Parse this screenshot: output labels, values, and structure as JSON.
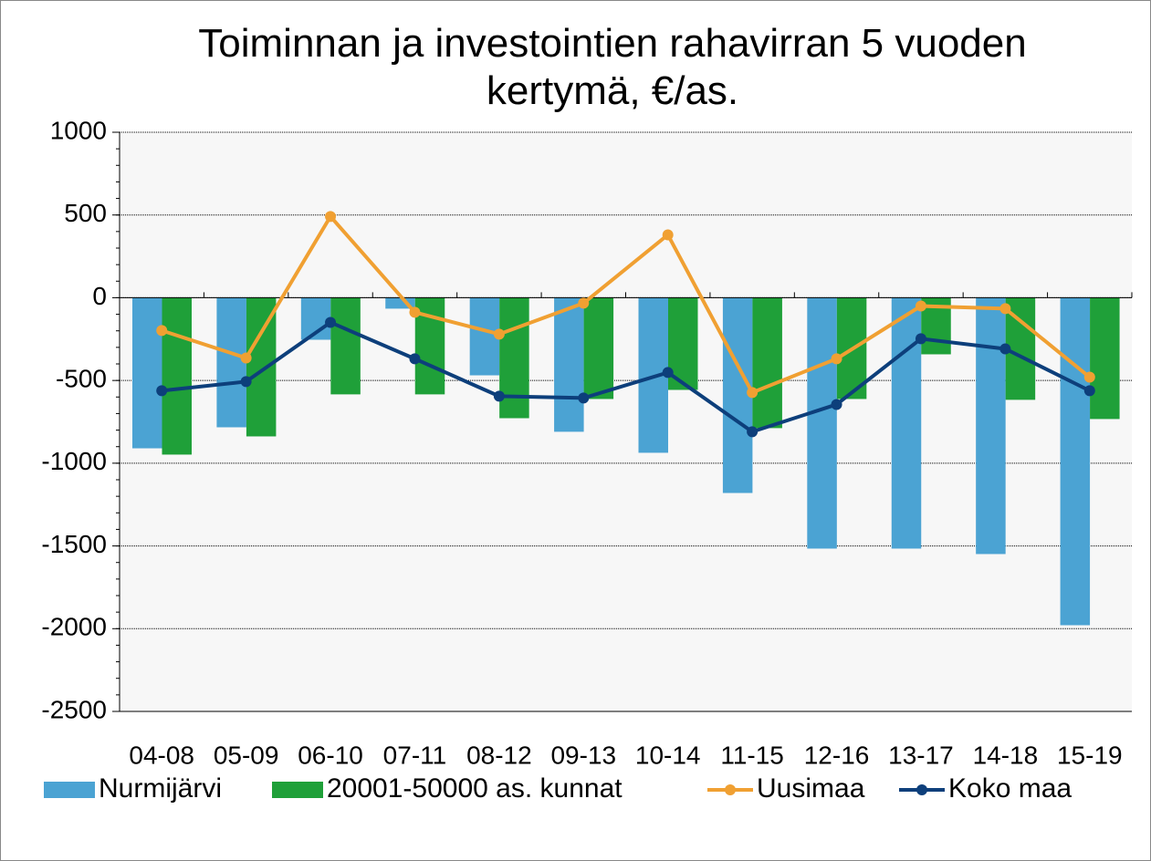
{
  "chart_data": {
    "type": "bar_line",
    "title": "Toiminnan ja investointien rahavirran 5 vuoden kertymä, €/as.",
    "categories": [
      "04-08",
      "05-09",
      "06-10",
      "07-11",
      "08-12",
      "09-13",
      "10-14",
      "11-15",
      "12-16",
      "13-17",
      "14-18",
      "15-19"
    ],
    "series": [
      {
        "name": "Nurmijärvi",
        "type": "bar",
        "color": "#4ba3d3",
        "values": [
          -910,
          -783,
          -254,
          -66,
          -469,
          -810,
          -937,
          -1180,
          -1516,
          -1516,
          -1549,
          -1979
        ]
      },
      {
        "name": "20001-50000 as. kunnat",
        "type": "bar",
        "color": "#1fa039",
        "values": [
          -948,
          -838,
          -584,
          -584,
          -728,
          -612,
          -557,
          -788,
          -612,
          -342,
          -617,
          -733
        ]
      },
      {
        "name": "Uusimaa",
        "type": "line",
        "color": "#f0a032",
        "values": [
          -198,
          -364,
          491,
          -88,
          -220,
          -33,
          380,
          -573,
          -369,
          -50,
          -66,
          -480
        ]
      },
      {
        "name": "Koko maa",
        "type": "line",
        "color": "#0d3f7b",
        "values": [
          -562,
          -507,
          -149,
          -369,
          -595,
          -606,
          -452,
          -810,
          -645,
          -248,
          -309,
          -562
        ]
      }
    ],
    "ylim": [
      -2500,
      1000
    ],
    "yticks": [
      -2500,
      -2000,
      -1500,
      -1000,
      -500,
      0,
      500,
      1000
    ],
    "grid": true,
    "legend": "bottom"
  }
}
